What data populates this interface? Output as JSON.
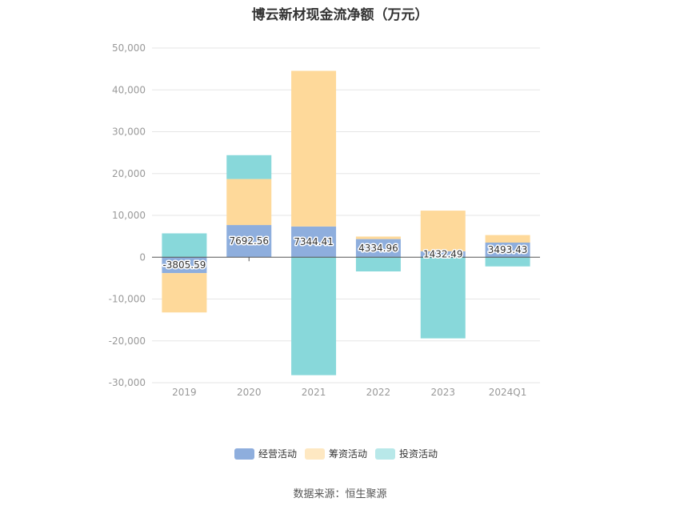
{
  "chart_data": {
    "type": "bar",
    "stacked": true,
    "title": "博云新材现金流净额（万元）",
    "source": "数据来源：恒生聚源",
    "categories": [
      "2019",
      "2020",
      "2021",
      "2022",
      "2023",
      "2024Q1"
    ],
    "ylim": [
      -30000,
      50000
    ],
    "yticks": [
      50000,
      40000,
      30000,
      20000,
      10000,
      0,
      -10000,
      -20000,
      -30000
    ],
    "ytick_labels": [
      "50,000",
      "40,000",
      "30,000",
      "20,000",
      "10,000",
      "0",
      "-10,000",
      "-20,000",
      "-30,000"
    ],
    "grid": true,
    "legend_position": "bottom",
    "series": [
      {
        "name": "经营活动",
        "color": "#8eaedd",
        "values": [
          -3805.59,
          7692.56,
          7344.41,
          4334.96,
          1432.49,
          3493.43
        ],
        "labels": [
          "-3805.59",
          "7692.56",
          "7344.41",
          "4334.96",
          "1432.49",
          "3493.43"
        ]
      },
      {
        "name": "筹资活动",
        "color": "#fed99a",
        "values": [
          -9400,
          11000,
          37200,
          600,
          9700,
          1800
        ]
      },
      {
        "name": "投资活动",
        "color": "#88d8da",
        "values": [
          5700,
          5700,
          -28200,
          -3400,
          -19400,
          -2200
        ]
      }
    ]
  }
}
